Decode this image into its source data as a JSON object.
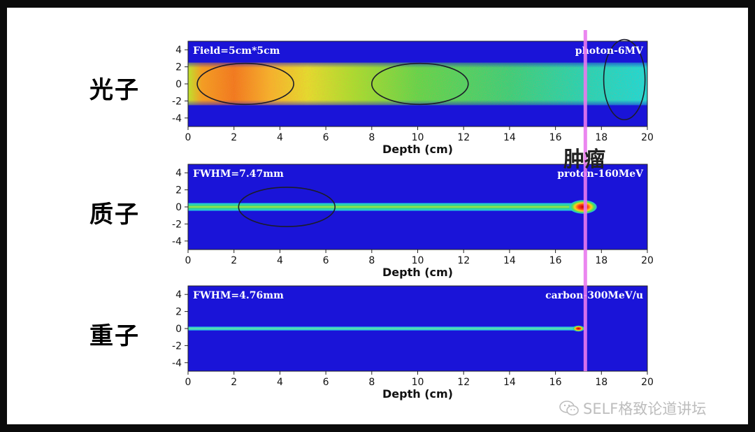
{
  "side_labels": [
    "光子",
    "质子",
    "重子"
  ],
  "tumor_label": "肿瘤",
  "watermark": "SELF格致论道讲坛",
  "chart_data": [
    {
      "type": "heatmap",
      "panel_label": "光子",
      "left_text": "Field=5cm*5cm",
      "right_text": "photon-6MV",
      "xlabel": "Depth (cm)",
      "x_ticks": [
        0,
        2,
        4,
        6,
        8,
        10,
        12,
        14,
        16,
        18,
        20
      ],
      "y_ticks": [
        4,
        2,
        0,
        -2,
        -4
      ],
      "xlim": [
        0,
        20
      ],
      "ylim": [
        -5,
        5
      ],
      "beam_half_width_cm": 2.5,
      "highlight_circles": [
        {
          "x": 2.5,
          "y": 0,
          "rx": 2.1,
          "ry": 2.4
        },
        {
          "x": 10.1,
          "y": 0,
          "rx": 2.1,
          "ry": 2.4
        },
        {
          "x": 19.0,
          "y": 0.5,
          "rx": 0.9,
          "ry": 4.7
        }
      ]
    },
    {
      "type": "heatmap",
      "panel_label": "质子",
      "left_text": "FWHM=7.47mm",
      "right_text": "proton-160MeV",
      "xlabel": "Depth (cm)",
      "x_ticks": [
        0,
        2,
        4,
        6,
        8,
        10,
        12,
        14,
        16,
        18,
        20
      ],
      "y_ticks": [
        4,
        2,
        0,
        -2,
        -4
      ],
      "xlim": [
        0,
        20
      ],
      "ylim": [
        -5,
        5
      ],
      "bragg_peak_depth_cm": 17.2,
      "highlight_circles": [
        {
          "x": 4.3,
          "y": 0,
          "rx": 2.1,
          "ry": 2.3
        }
      ]
    },
    {
      "type": "heatmap",
      "panel_label": "重子",
      "left_text": "FWHM=4.76mm",
      "right_text": "carbon-300MeV/u",
      "xlabel": "Depth (cm)",
      "x_ticks": [
        0,
        2,
        4,
        6,
        8,
        10,
        12,
        14,
        16,
        18,
        20
      ],
      "y_ticks": [
        4,
        2,
        0,
        -2,
        -4
      ],
      "xlim": [
        0,
        20
      ],
      "ylim": [
        -5,
        5
      ],
      "bragg_peak_depth_cm": 17.0,
      "highlight_circles": []
    }
  ],
  "tumor_depth_cm": 17.3,
  "colors": {
    "field": "#1a14d8",
    "tumor_line": "#e979ee",
    "circle": "#1c1c2a"
  }
}
